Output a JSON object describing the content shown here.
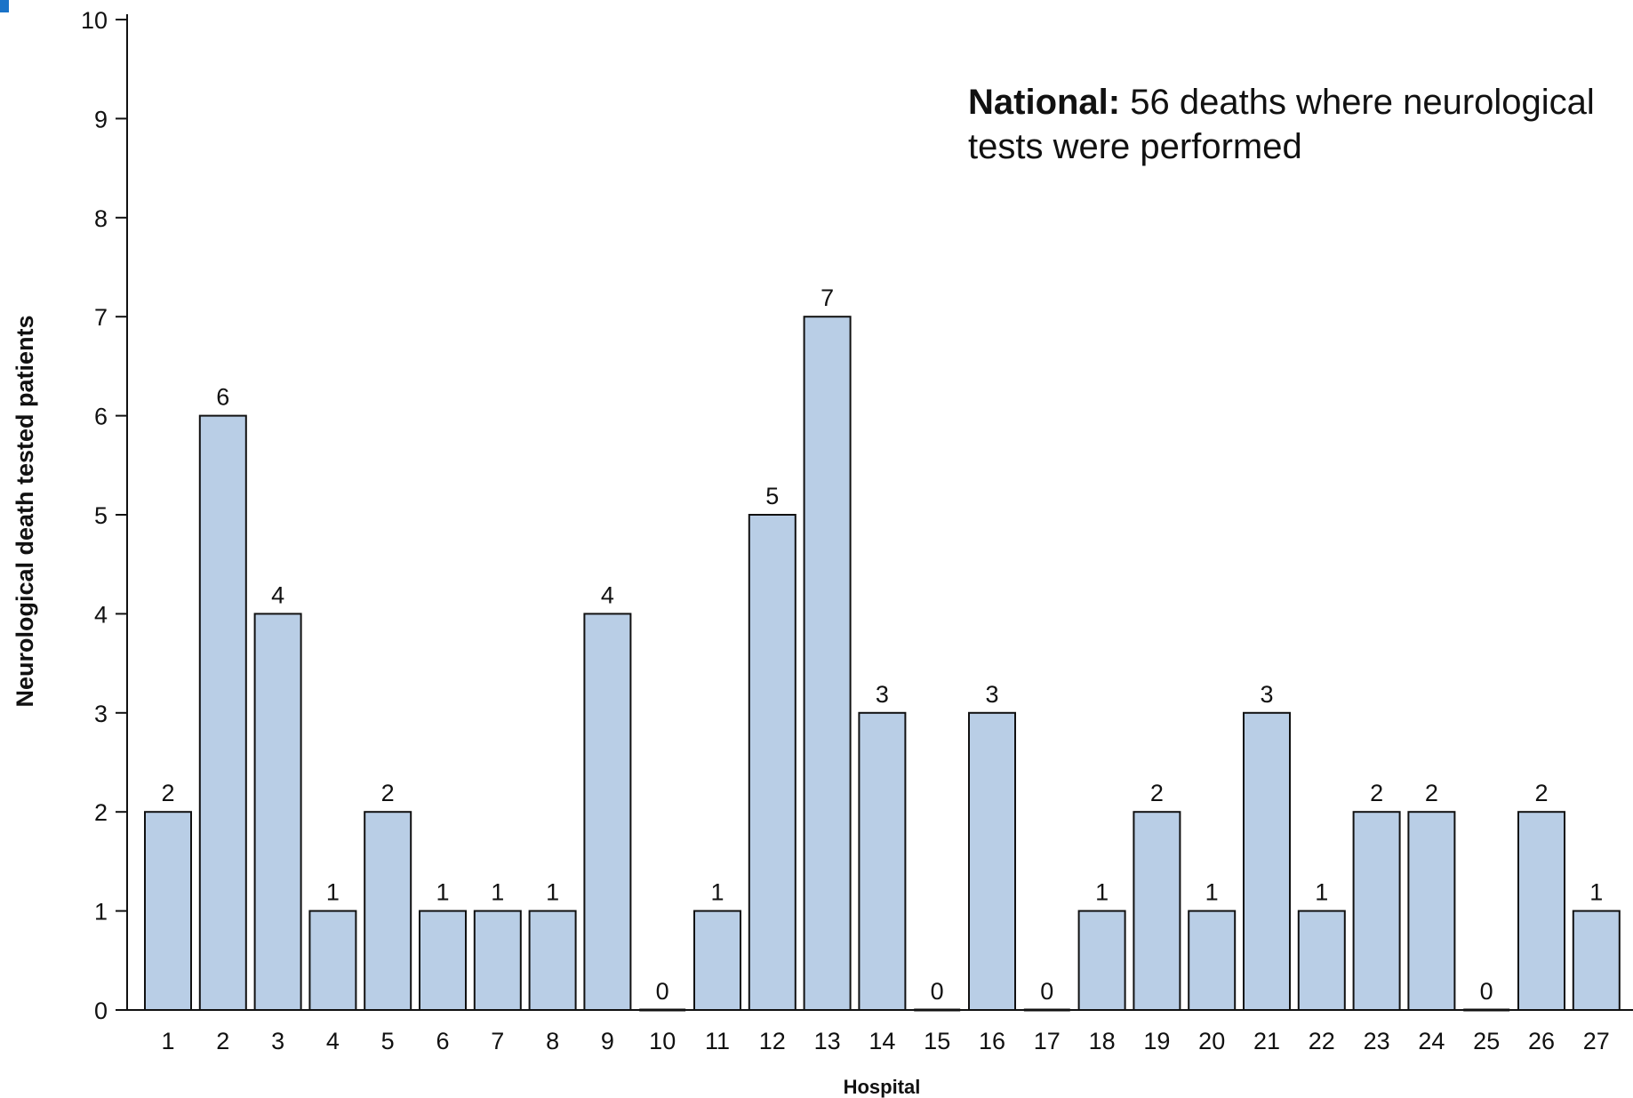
{
  "chart_data": {
    "type": "bar",
    "title": "",
    "xlabel": "Hospital",
    "ylabel": "Neurological death tested patients",
    "ylim": [
      0,
      10
    ],
    "yticks": [
      "0",
      "1",
      "2",
      "3",
      "4",
      "5",
      "6",
      "7",
      "8",
      "9",
      "10"
    ],
    "categories": [
      "1",
      "2",
      "3",
      "4",
      "5",
      "6",
      "7",
      "8",
      "9",
      "10",
      "11",
      "12",
      "13",
      "14",
      "15",
      "16",
      "17",
      "18",
      "19",
      "20",
      "21",
      "22",
      "23",
      "24",
      "25",
      "26",
      "27"
    ],
    "values": [
      2,
      6,
      4,
      1,
      2,
      1,
      1,
      1,
      4,
      0,
      1,
      5,
      7,
      3,
      0,
      3,
      0,
      1,
      2,
      1,
      3,
      1,
      2,
      2,
      0,
      2,
      1
    ],
    "data_labels": [
      "2",
      "6",
      "4",
      "1",
      "2",
      "1",
      "1",
      "1",
      "4",
      "0",
      "1",
      "5",
      "7",
      "3",
      "0",
      "3",
      "0",
      "1",
      "2",
      "1",
      "3",
      "1",
      "2",
      "2",
      "0",
      "2",
      "1"
    ],
    "bar_color": "#b9cee6",
    "bar_edge_color": "#111111",
    "grid": false,
    "annotation": {
      "bold": "National:",
      "text": " 56 deaths where neurological tests were performed"
    }
  }
}
